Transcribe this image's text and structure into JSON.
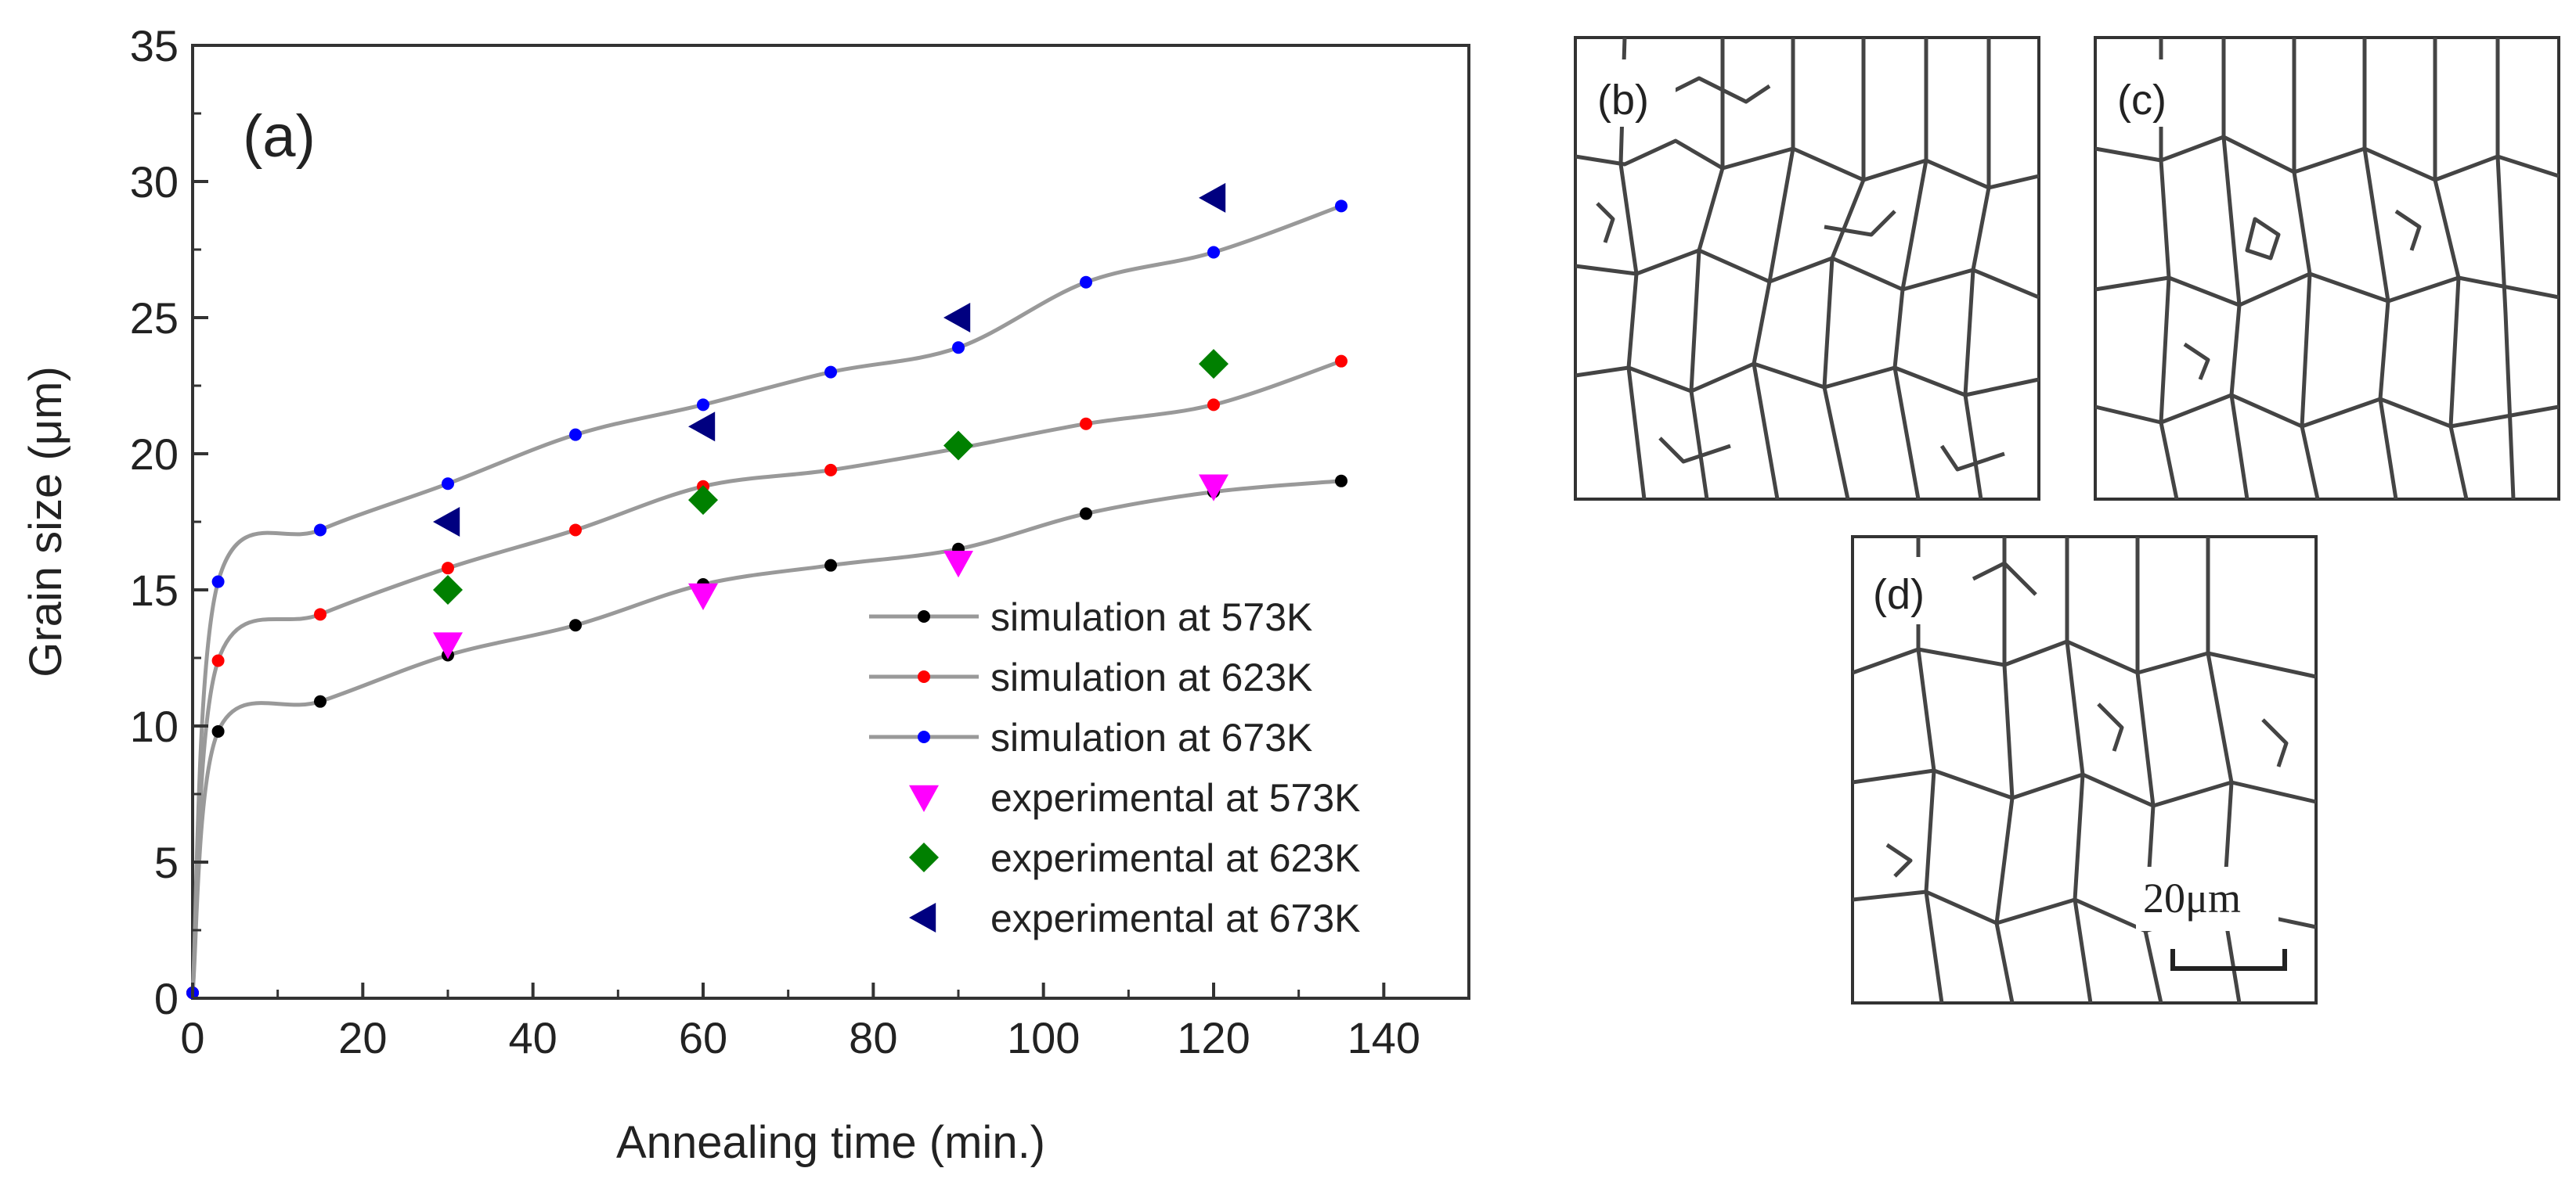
{
  "chart_data": {
    "type": "line",
    "panel_label": "(a)",
    "xlabel": "Annealing time (min.)",
    "ylabel": "Grain size (μm)",
    "xlim": [
      0,
      150
    ],
    "ylim": [
      0,
      35
    ],
    "x_ticks": [
      0,
      20,
      40,
      60,
      80,
      100,
      120,
      140
    ],
    "y_ticks": [
      0,
      5,
      10,
      15,
      20,
      25,
      30,
      35
    ],
    "grid": false,
    "legend_position": "bottom-right",
    "series": [
      {
        "name": "simulation at 573K",
        "kind": "simulation",
        "color": "#000000",
        "x": [
          0,
          3,
          15,
          30,
          45,
          60,
          75,
          90,
          105,
          120,
          135
        ],
        "y": [
          0.2,
          9.8,
          10.9,
          12.6,
          13.7,
          15.2,
          15.9,
          16.5,
          17.8,
          18.6,
          19.0
        ]
      },
      {
        "name": "simulation at 623K",
        "kind": "simulation",
        "color": "#ff0000",
        "x": [
          0,
          3,
          15,
          30,
          45,
          60,
          75,
          90,
          105,
          120,
          135
        ],
        "y": [
          0.2,
          12.4,
          14.1,
          15.8,
          17.2,
          18.8,
          19.4,
          20.2,
          21.1,
          21.8,
          23.4
        ]
      },
      {
        "name": "simulation at 673K",
        "kind": "simulation",
        "color": "#0000ff",
        "x": [
          0,
          3,
          15,
          30,
          45,
          60,
          75,
          90,
          105,
          120,
          135
        ],
        "y": [
          0.2,
          15.3,
          17.2,
          18.9,
          20.7,
          21.8,
          23.0,
          23.9,
          26.3,
          27.4,
          29.1
        ]
      },
      {
        "name": "experimental at 573K",
        "kind": "experimental",
        "marker": "triangle-down",
        "color": "#ff00ff",
        "x": [
          30,
          60,
          90,
          120
        ],
        "y": [
          13.0,
          14.8,
          16.0,
          18.8
        ]
      },
      {
        "name": "experimental at 623K",
        "kind": "experimental",
        "marker": "diamond",
        "color": "#008000",
        "x": [
          30,
          60,
          90,
          120
        ],
        "y": [
          15.0,
          18.3,
          20.3,
          23.3
        ]
      },
      {
        "name": "experimental at 673K",
        "kind": "experimental",
        "marker": "triangle-left",
        "color": "#000080",
        "x": [
          30,
          60,
          90,
          120
        ],
        "y": [
          17.5,
          21.0,
          25.0,
          29.4
        ]
      }
    ],
    "fit_line_color": "#999999"
  },
  "microstructures": {
    "panels": [
      {
        "label": "(b)"
      },
      {
        "label": "(c)"
      },
      {
        "label": "(d)"
      }
    ],
    "scale_bar_label": "20μm",
    "line_color": "#444444"
  }
}
